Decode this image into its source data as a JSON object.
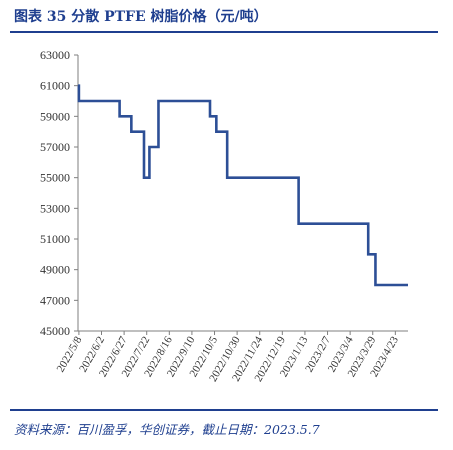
{
  "figure": {
    "title": "图表 35    分散 PTFE 树脂价格（元/吨）",
    "source": "资料来源：百川盈孚，华创证券，截止日期：2023.5.7"
  },
  "chart_data": {
    "type": "line",
    "title": "",
    "xlabel": "",
    "ylabel": "",
    "ylim": [
      45000,
      63000
    ],
    "yticks": [
      45000,
      47000,
      49000,
      51000,
      53000,
      55000,
      57000,
      59000,
      61000,
      63000
    ],
    "xlim": [
      "2022-05-07",
      "2023-05-07"
    ],
    "xticks": [
      "2022/5/8",
      "2022/6/2",
      "2022/6/27",
      "2022/7/22",
      "2022/8/16",
      "2022/9/10",
      "2022/10/5",
      "2022/10/30",
      "2022/11/24",
      "2022/12/19",
      "2023/1/13",
      "2023/2/7",
      "2023/3/4",
      "2023/3/29",
      "2023/4/23"
    ],
    "line_color": "#2d4f96",
    "grid": false,
    "series": [
      {
        "step": "post",
        "x": [
          "2022-05-07",
          "2022-05-08",
          "2022-06-22",
          "2022-07-05",
          "2022-07-19",
          "2022-07-25",
          "2022-08-04",
          "2022-08-12",
          "2022-09-30",
          "2022-10-07",
          "2022-10-19",
          "2022-11-04",
          "2023-01-06",
          "2023-03-24",
          "2023-04-01",
          "2023-05-07"
        ],
        "y": [
          61000,
          60000,
          59000,
          58000,
          55000,
          57000,
          60000,
          60000,
          59000,
          58000,
          55000,
          55000,
          52000,
          50000,
          48000,
          48000
        ]
      }
    ]
  }
}
